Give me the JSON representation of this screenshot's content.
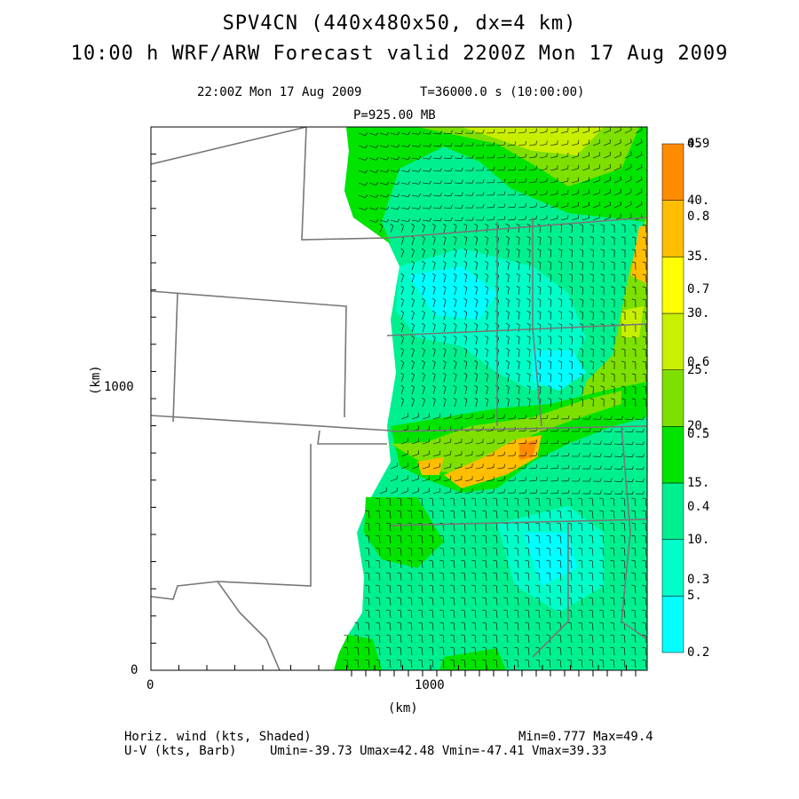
{
  "header": {
    "title_line1": "SPV4CN (440x480x50, dx=4 km)",
    "title_line2": "10:00 h WRF/ARW Forecast valid 2200Z Mon 17 Aug 2009",
    "valid_time": "22:00Z Mon 17 Aug 2009",
    "sim_time": "T=36000.0 s (10:00:00)",
    "pressure_level": "P=925.00 MB"
  },
  "axes": {
    "y_label": "(km)",
    "x_label": "(km)",
    "y_ticks": [
      "0",
      "1000"
    ],
    "x_ticks": [
      "0",
      "1000"
    ]
  },
  "colorbar": {
    "speed_labels": [
      "5.",
      "10.",
      "15.",
      "20.",
      "25.",
      "30.",
      "35.",
      "40.",
      "45"
    ],
    "secondary_labels": [
      "0.2",
      "0.3",
      "0.4",
      "0.5",
      "0.6",
      "0.7",
      "0.8",
      "0.9"
    ],
    "colors": [
      "#00ffff",
      "#00ffc8",
      "#00f090",
      "#00e400",
      "#7de000",
      "#c8ef00",
      "#ffff00",
      "#ffbe00",
      "#ff8c00"
    ]
  },
  "footer": {
    "shaded_field": "Horiz. wind (kts, Shaded)",
    "barb_field": "U-V (kts, Barb)",
    "minmax": "Min=0.777 Max=49.4",
    "uv_stats": "Umin=-39.73 Umax=42.48 Vmin=-47.41 Vmax=39.33"
  }
}
